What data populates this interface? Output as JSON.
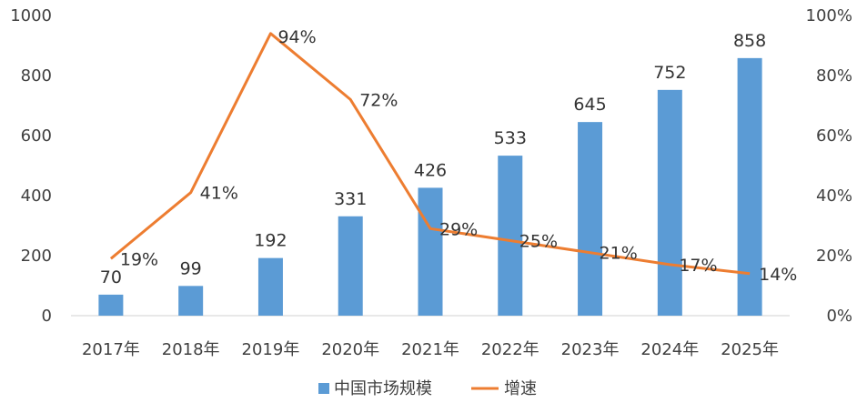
{
  "chart_data": {
    "type": "bar",
    "categories": [
      "2017年",
      "2018年",
      "2019年",
      "2020年",
      "2021年",
      "2022年",
      "2023年",
      "2024年",
      "2025年"
    ],
    "series": [
      {
        "name": "中国市场规模",
        "type": "bar",
        "axis": "left",
        "values": [
          70,
          99,
          192,
          331,
          426,
          533,
          645,
          752,
          858
        ],
        "labels": [
          "70",
          "99",
          "192",
          "331",
          "426",
          "533",
          "645",
          "752",
          "858"
        ],
        "color": "#5B9BD5"
      },
      {
        "name": "增速",
        "type": "line",
        "axis": "right",
        "values": [
          19,
          41,
          94,
          72,
          29,
          25,
          21,
          17,
          14
        ],
        "labels": [
          "19%",
          "41%",
          "94%",
          "72%",
          "29%",
          "25%",
          "21%",
          "17%",
          "14%"
        ],
        "color": "#ED7D31"
      }
    ],
    "y_left": {
      "ylim": [
        0,
        1000
      ],
      "ticks": [
        "0",
        "200",
        "400",
        "600",
        "800",
        "1000"
      ]
    },
    "y_right": {
      "ylim": [
        0,
        100
      ],
      "ticks": [
        "0%",
        "20%",
        "40%",
        "60%",
        "80%",
        "100%"
      ]
    },
    "grid": false,
    "legend_position": "bottom",
    "title": "",
    "xlabel": "",
    "ylabel": ""
  }
}
